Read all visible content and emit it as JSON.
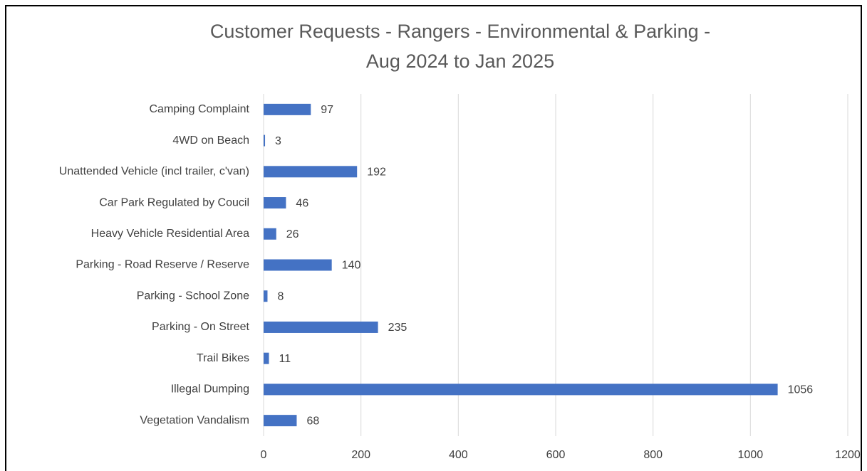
{
  "chart_data": {
    "type": "barh",
    "title": [
      "Customer Requests - Rangers - Environmental & Parking -",
      "Aug 2024 to Jan 2025"
    ],
    "categories": [
      "Camping Complaint",
      "4WD on Beach",
      "Unattended Vehicle (incl trailer, c'van)",
      "Car Park Regulated by Coucil",
      "Heavy Vehicle Residential Area",
      "Parking - Road Reserve / Reserve",
      "Parking - School Zone",
      "Parking - On Street",
      "Trail Bikes",
      "Illegal Dumping",
      "Vegetation Vandalism"
    ],
    "values": [
      97,
      3,
      192,
      46,
      26,
      140,
      8,
      235,
      11,
      1056,
      68
    ],
    "color": "#4472c4",
    "xlim": [
      0,
      1200
    ],
    "xticks": [
      0,
      200,
      400,
      600,
      800,
      1000,
      1200
    ],
    "grid": true
  }
}
